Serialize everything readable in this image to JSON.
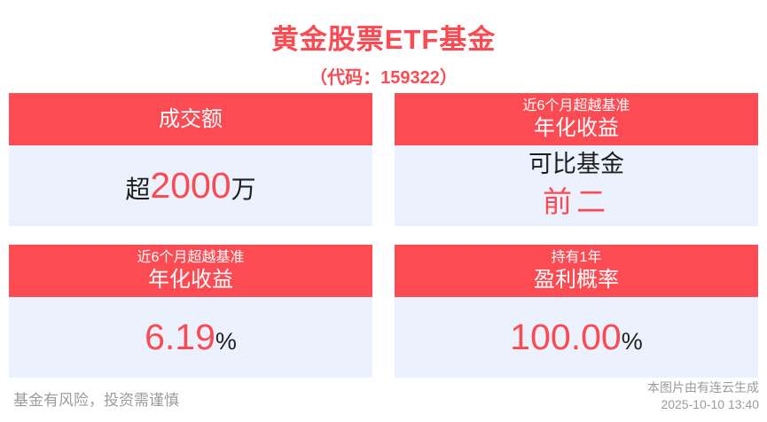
{
  "colors": {
    "accent_red": "#fc4b52",
    "title_red": "#fb4a52",
    "panel_bg": "#ebf1fd",
    "footer_gray": "#9b9b9b",
    "text_dark": "#1f1f1f"
  },
  "header": {
    "title": "黄金股票ETF基金",
    "subtitle": "（代码：159322）"
  },
  "cards": {
    "turnover": {
      "header_large": "成交额",
      "value_prefix": "超",
      "value_main": "2000",
      "value_suffix": "万"
    },
    "rank": {
      "header_small": "近6个月超越基准",
      "header_large": "年化收益",
      "value_line1": "可比基金",
      "value_line2": "前二"
    },
    "annualized": {
      "header_small": "近6个月超越基准",
      "header_large": "年化收益",
      "value_main": "6.19",
      "value_suffix": "%"
    },
    "probability": {
      "header_small": "持有1年",
      "header_large": "盈利概率",
      "value_main": "100.00",
      "value_suffix": "%"
    }
  },
  "footer": {
    "disclaimer": "基金有风险，投资需谨慎",
    "credit_line1": "本图片由有连云生成",
    "credit_line2": "2025-10-10 13:40"
  }
}
